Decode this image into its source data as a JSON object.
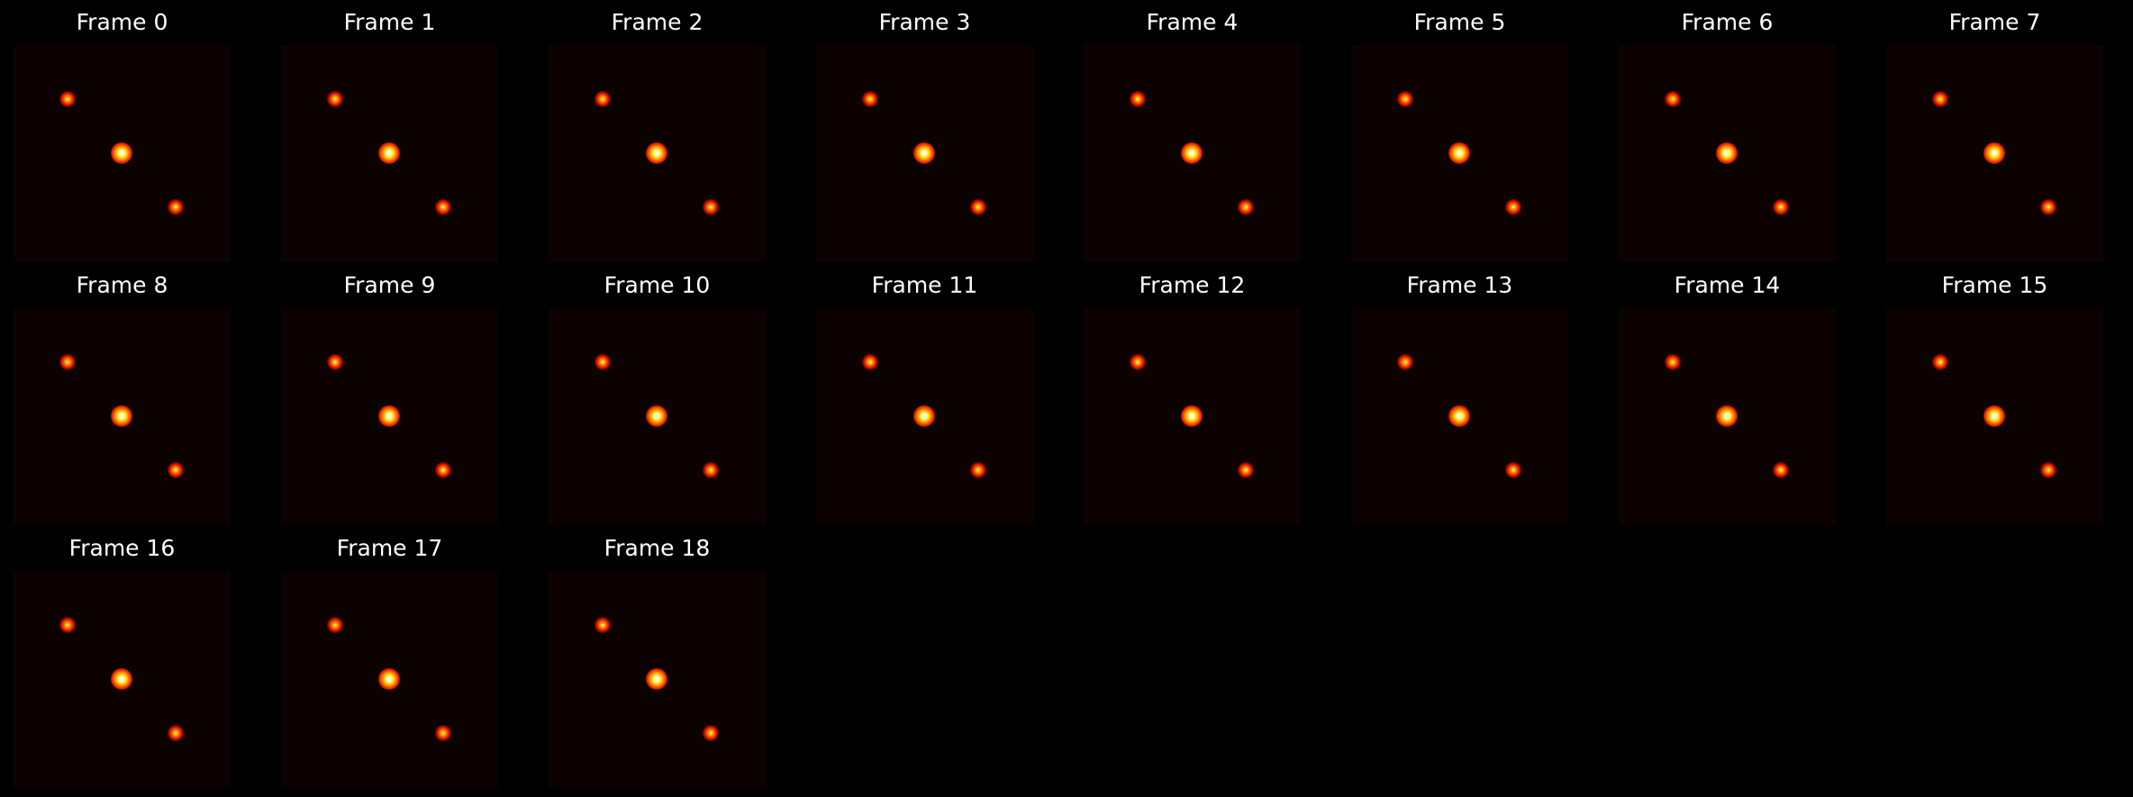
{
  "colors": {
    "background": "#000000",
    "panel": "#0d0202",
    "hot_core": "#ffffff",
    "hot_mid": "#ffcc00",
    "hot_edge": "#ff2a00",
    "title_text": "#ffffff"
  },
  "frames": [
    {
      "title": "Frame 0"
    },
    {
      "title": "Frame 1"
    },
    {
      "title": "Frame 2"
    },
    {
      "title": "Frame 3"
    },
    {
      "title": "Frame 4"
    },
    {
      "title": "Frame 5"
    },
    {
      "title": "Frame 6"
    },
    {
      "title": "Frame 7"
    },
    {
      "title": "Frame 8"
    },
    {
      "title": "Frame 9"
    },
    {
      "title": "Frame 10"
    },
    {
      "title": "Frame 11"
    },
    {
      "title": "Frame 12"
    },
    {
      "title": "Frame 13"
    },
    {
      "title": "Frame 14"
    },
    {
      "title": "Frame 15"
    },
    {
      "title": "Frame 16"
    },
    {
      "title": "Frame 17"
    },
    {
      "title": "Frame 18"
    }
  ]
}
